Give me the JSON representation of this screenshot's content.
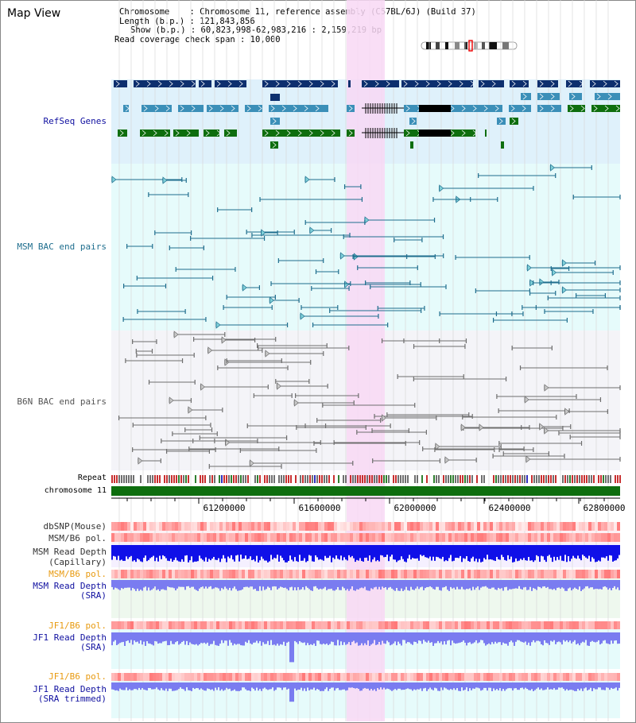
{
  "header": {
    "title": "Map View",
    "chromosome_line": "Chromosome    : Chromosome 11, reference assembly (C57BL/6J) (Build 37)",
    "length_line": "Length (b.p.) : 121,843,856",
    "show_line": "Show (b.p.) : 60,823,998-62,983,216 : 2,159,219 bp",
    "coverage_line": "Read coverage check span : 10,000"
  },
  "tracks": {
    "refseq": "RefSeq Genes",
    "msm_bac": "MSM BAC end pairs",
    "b6n_bac": "B6N BAC end pairs",
    "repeat": "Repeat",
    "chromosome": "chromosome 11",
    "dbsnp": "dbSNP(Mouse)",
    "msm_pol": "MSM/B6 pol.",
    "msm_depth_cap_1": "MSM Read Depth",
    "msm_depth_cap_2": "(Capillary)",
    "msm_pol_sra": "MSM/B6 pol.",
    "msm_depth_sra_1": "MSM Read Depth",
    "msm_depth_sra_2": "(SRA)",
    "jf1_pol_1": "JF1/B6 pol.",
    "jf1_depth_1": "JF1 Read Depth",
    "jf1_depth_1b": "(SRA)",
    "jf1_pol_2": "JF1/B6 pol.",
    "jf1_depth_2": "JF1 Read Depth",
    "jf1_depth_2b": "(SRA trimmed)"
  },
  "axis": {
    "ticks": [
      "61200000",
      "61600000",
      "62000000",
      "62400000",
      "62800000"
    ]
  },
  "colors": {
    "refseq_bg": "#dff1fb",
    "msm_bg": "#e6fbfb",
    "b6n_bg": "#f4f4f8",
    "highlight": "#f8d8f4",
    "gene_dark": "#0d2f6e",
    "gene_mid": "#3b8fb8",
    "gene_green": "#0e6e0e",
    "msm_line": "#1f6e8e",
    "b6n_line": "#6e6e6e",
    "depth_blue": "#1010e8",
    "depth_sra": "#7a7cf0",
    "label_blue": "#1010a0",
    "label_orange": "#e89a10"
  }
}
